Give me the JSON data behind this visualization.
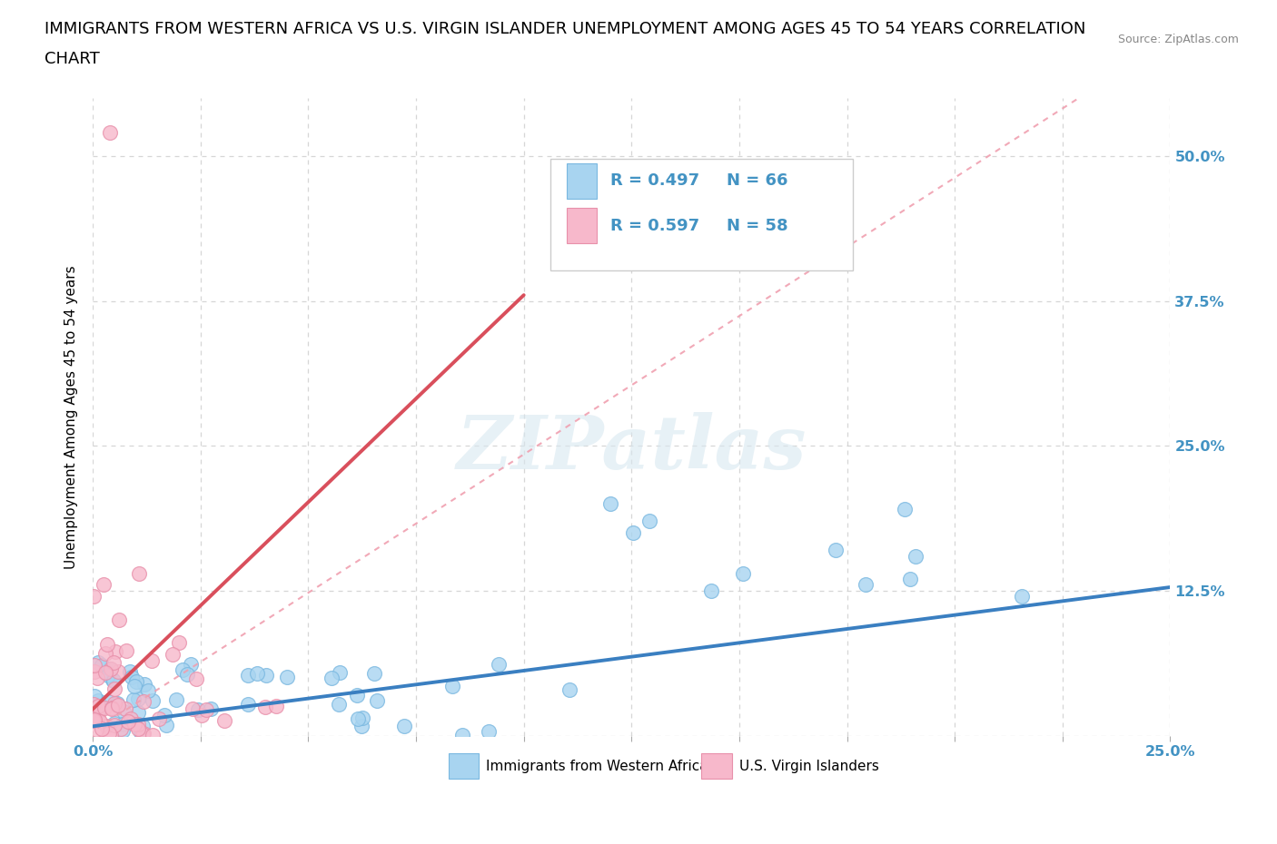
{
  "title_line1": "IMMIGRANTS FROM WESTERN AFRICA VS U.S. VIRGIN ISLANDER UNEMPLOYMENT AMONG AGES 45 TO 54 YEARS CORRELATION",
  "title_line2": "CHART",
  "source_text": "Source: ZipAtlas.com",
  "ylabel": "Unemployment Among Ages 45 to 54 years",
  "xlim": [
    0,
    0.25
  ],
  "ylim": [
    0,
    0.55
  ],
  "xticks": [
    0.0,
    0.025,
    0.05,
    0.075,
    0.1,
    0.125,
    0.15,
    0.175,
    0.2,
    0.225,
    0.25
  ],
  "yticks": [
    0,
    0.125,
    0.25,
    0.375,
    0.5
  ],
  "yticklabels_right": [
    "",
    "12.5%",
    "25.0%",
    "37.5%",
    "50.0%"
  ],
  "series1_color": "#a8d4f0",
  "series1_edge": "#7ab8e0",
  "series2_color": "#f7b8cb",
  "series2_edge": "#e890aa",
  "trend1_color": "#3a7fc1",
  "trend2_solid_color": "#d94f5c",
  "trend2_dash_color": "#f0a0b0",
  "R1": 0.497,
  "N1": 66,
  "R2": 0.597,
  "N2": 58,
  "legend1_label": "Immigrants from Western Africa",
  "legend2_label": "U.S. Virgin Islanders",
  "watermark": "ZIPatlas",
  "background_color": "#ffffff",
  "grid_color": "#cccccc",
  "tick_color": "#4393c3",
  "title_fontsize": 13,
  "axis_label_fontsize": 11,
  "tick_fontsize": 11.5
}
